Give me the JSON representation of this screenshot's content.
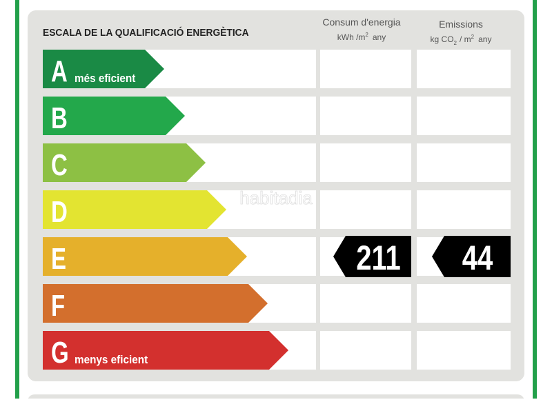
{
  "header": {
    "title": "ESCALA DE LA QUALIFICACIÓ ENERGÈTICA",
    "consum": {
      "label": "Consum d'energia",
      "unit_main": "kWh /m",
      "unit_sup": "2",
      "unit_end": "any"
    },
    "emissions": {
      "label": "Emissions",
      "unit_main": "kg CO",
      "unit_sub": "2",
      "unit_mid": "/ m",
      "unit_sup": "2",
      "unit_end": "any"
    }
  },
  "watermark": "habitadia",
  "rows": [
    {
      "letter": "A",
      "note": "més eficient",
      "color": "#1a8a45"
    },
    {
      "letter": "B",
      "color": "#23a84b"
    },
    {
      "letter": "C",
      "color": "#8dc044"
    },
    {
      "letter": "D",
      "color": "#e3e431"
    },
    {
      "letter": "E",
      "color": "#e5b02b",
      "consum": "211",
      "emissions": "44"
    },
    {
      "letter": "F",
      "color": "#d36f2d"
    },
    {
      "letter": "G",
      "note": "menys eficient",
      "color": "#d3302e"
    }
  ]
}
